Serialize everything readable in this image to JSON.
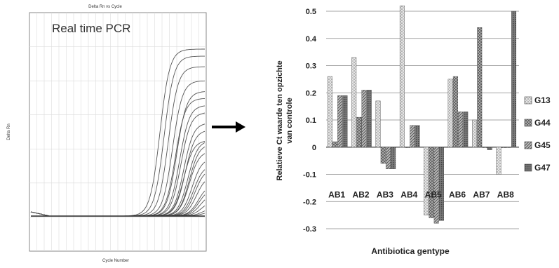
{
  "pcr_panel": {
    "top_title": "Delta Rn vs Cycle",
    "label": "Real time PCR",
    "y_label": "Delta Rn",
    "x_label": "Cycle Number"
  },
  "arrow": {
    "icon": "arrow-right-icon"
  },
  "chart_data": {
    "type": "bar",
    "title": "",
    "xlabel": "Antibiotica gentype",
    "ylabel_lines": [
      "Relatieve Ct waarde ten opzichte",
      "van controle"
    ],
    "categories": [
      "AB1",
      "AB2",
      "AB3",
      "AB4",
      "AB5",
      "AB6",
      "AB7",
      "AB8"
    ],
    "ylim": [
      -0.3,
      0.5
    ],
    "yticks": [
      "0.5",
      "0.4",
      "0.3",
      "0.2",
      "0.1",
      "0",
      "-0.1",
      "-0.2",
      "-0.3"
    ],
    "ytick_values": [
      0.5,
      0.4,
      0.3,
      0.2,
      0.1,
      0,
      -0.1,
      -0.2,
      -0.3
    ],
    "grid": true,
    "legend_position": "right",
    "series": [
      {
        "name": "G13",
        "values": [
          0.26,
          0.33,
          0.17,
          0.52,
          -0.25,
          0.25,
          0.1,
          -0.1
        ],
        "pattern": "dots",
        "color": "#c8c8c8"
      },
      {
        "name": "G44",
        "values": [
          0.02,
          0.11,
          -0.06,
          0.0,
          -0.26,
          0.26,
          0.44,
          0.0
        ],
        "pattern": "crosshatch",
        "color": "#5a5a5a"
      },
      {
        "name": "G45",
        "values": [
          0.19,
          0.21,
          -0.08,
          0.08,
          -0.28,
          0.13,
          0.0,
          0.0
        ],
        "pattern": "diagonal",
        "color": "#9a9a9a"
      },
      {
        "name": "G47",
        "values": [
          0.19,
          0.21,
          -0.08,
          0.08,
          -0.27,
          0.13,
          -0.01,
          0.5
        ],
        "pattern": "dense",
        "color": "#6e6e6e"
      }
    ]
  }
}
